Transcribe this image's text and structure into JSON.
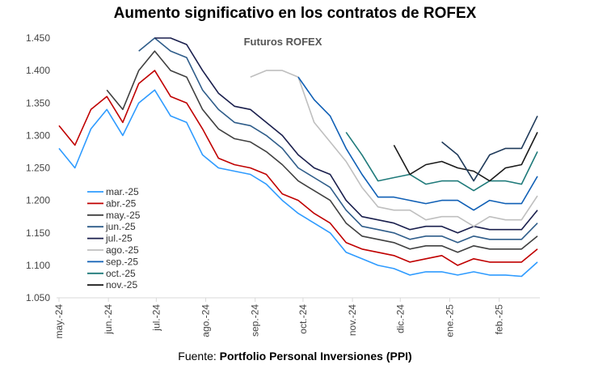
{
  "chart_data": {
    "type": "line",
    "title": "Aumento significativo en los contratos de ROFEX",
    "subtitle": "Futuros ROFEX",
    "source_label": "Fuente:",
    "source": "Portfolio Personal Inversiones (PPI)",
    "xlabel": "",
    "ylabel": "",
    "ylim": [
      1.05,
      1.45
    ],
    "yticks": [
      "1.050",
      "1.100",
      "1.150",
      "1.200",
      "1.250",
      "1.300",
      "1.350",
      "1.400",
      "1.450"
    ],
    "ytick_values": [
      1.05,
      1.1,
      1.15,
      1.2,
      1.25,
      1.3,
      1.35,
      1.4,
      1.45
    ],
    "xticks": [
      "may.-24",
      "jun.-24",
      "jul.-24",
      "ago.-24",
      "sep.-24",
      "oct.-24",
      "nov.-24",
      "dic.-24",
      "ene.-25",
      "feb.-25"
    ],
    "xtick_days": [
      0,
      31,
      61,
      92,
      123,
      153,
      184,
      214,
      245,
      276
    ],
    "x_days": [
      0,
      10,
      20,
      30,
      40,
      50,
      60,
      70,
      80,
      90,
      100,
      110,
      120,
      130,
      140,
      150,
      160,
      170,
      180,
      190,
      200,
      210,
      220,
      230,
      240,
      250,
      260,
      270,
      280,
      290,
      300
    ],
    "legend_position": "left-center",
    "series": [
      {
        "name": "mar.-25",
        "color": "#2e9bff",
        "values": [
          1.28,
          1.25,
          1.31,
          1.34,
          1.3,
          1.35,
          1.37,
          1.33,
          1.32,
          1.27,
          1.25,
          1.245,
          1.24,
          1.225,
          1.2,
          1.18,
          1.165,
          1.15,
          1.12,
          1.11,
          1.1,
          1.095,
          1.085,
          1.09,
          1.09,
          1.085,
          1.09,
          1.085,
          1.085,
          1.083,
          1.105
        ]
      },
      {
        "name": "abr.-25",
        "color": "#c00000",
        "values": [
          1.315,
          1.285,
          1.34,
          1.36,
          1.32,
          1.38,
          1.4,
          1.36,
          1.35,
          1.31,
          1.265,
          1.255,
          1.25,
          1.24,
          1.21,
          1.2,
          1.18,
          1.165,
          1.135,
          1.125,
          1.12,
          1.115,
          1.105,
          1.11,
          1.115,
          1.1,
          1.11,
          1.105,
          1.105,
          1.105,
          1.125
        ]
      },
      {
        "name": "may.-25",
        "color": "#404040",
        "values": [
          null,
          null,
          null,
          1.37,
          1.34,
          1.4,
          1.43,
          1.4,
          1.39,
          1.34,
          1.31,
          1.295,
          1.29,
          1.275,
          1.255,
          1.23,
          1.215,
          1.2,
          1.165,
          1.145,
          1.14,
          1.135,
          1.125,
          1.13,
          1.13,
          1.12,
          1.13,
          1.125,
          1.125,
          1.125,
          1.145
        ]
      },
      {
        "name": "jun.-25",
        "color": "#2f5d8a",
        "values": [
          null,
          null,
          null,
          null,
          null,
          1.43,
          1.45,
          1.43,
          1.42,
          1.37,
          1.34,
          1.32,
          1.315,
          1.3,
          1.28,
          1.25,
          1.235,
          1.22,
          1.185,
          1.16,
          1.155,
          1.15,
          1.14,
          1.145,
          1.145,
          1.135,
          1.145,
          1.14,
          1.14,
          1.14,
          1.165
        ]
      },
      {
        "name": "jul.-25",
        "color": "#1a1f4d",
        "values": [
          null,
          null,
          null,
          null,
          null,
          null,
          1.45,
          1.45,
          1.44,
          1.4,
          1.365,
          1.345,
          1.34,
          1.32,
          1.3,
          1.27,
          1.25,
          1.24,
          1.2,
          1.175,
          1.17,
          1.165,
          1.155,
          1.16,
          1.16,
          1.15,
          1.16,
          1.155,
          1.155,
          1.155,
          1.185
        ]
      },
      {
        "name": "ago.-25",
        "color": "#bfbfbf",
        "values": [
          null,
          null,
          null,
          null,
          null,
          null,
          null,
          null,
          null,
          null,
          null,
          null,
          1.39,
          1.4,
          1.4,
          1.39,
          1.32,
          1.29,
          1.26,
          1.22,
          1.19,
          1.185,
          1.185,
          1.17,
          1.175,
          1.175,
          1.16,
          1.175,
          1.17,
          1.17,
          1.207
        ]
      },
      {
        "name": "sep.-25",
        "color": "#0f5fb5",
        "values": [
          null,
          null,
          null,
          null,
          null,
          null,
          null,
          null,
          null,
          null,
          null,
          null,
          null,
          null,
          null,
          1.39,
          1.355,
          1.33,
          1.28,
          1.24,
          1.205,
          1.205,
          1.2,
          1.195,
          1.2,
          1.2,
          1.185,
          1.2,
          1.195,
          1.195,
          1.237
        ]
      },
      {
        "name": "oct.-25",
        "color": "#1f7a7a",
        "values": [
          null,
          null,
          null,
          null,
          null,
          null,
          null,
          null,
          null,
          null,
          null,
          null,
          null,
          null,
          null,
          null,
          null,
          null,
          1.305,
          1.27,
          1.23,
          1.235,
          1.24,
          1.225,
          1.23,
          1.23,
          1.215,
          1.23,
          1.23,
          1.225,
          1.275
        ]
      },
      {
        "name": "nov.-25",
        "color": "#1a1a1a",
        "values": [
          null,
          null,
          null,
          null,
          null,
          null,
          null,
          null,
          null,
          null,
          null,
          null,
          null,
          null,
          null,
          null,
          null,
          null,
          null,
          null,
          null,
          1.285,
          1.24,
          1.255,
          1.26,
          1.25,
          1.245,
          1.23,
          1.25,
          1.255,
          1.305
        ]
      },
      {
        "name": "",
        "color": "#1f3a5a",
        "values": [
          null,
          null,
          null,
          null,
          null,
          null,
          null,
          null,
          null,
          null,
          null,
          null,
          null,
          null,
          null,
          null,
          null,
          null,
          null,
          null,
          null,
          null,
          null,
          null,
          1.29,
          1.27,
          1.23,
          1.27,
          1.28,
          1.28,
          1.33
        ]
      }
    ]
  }
}
